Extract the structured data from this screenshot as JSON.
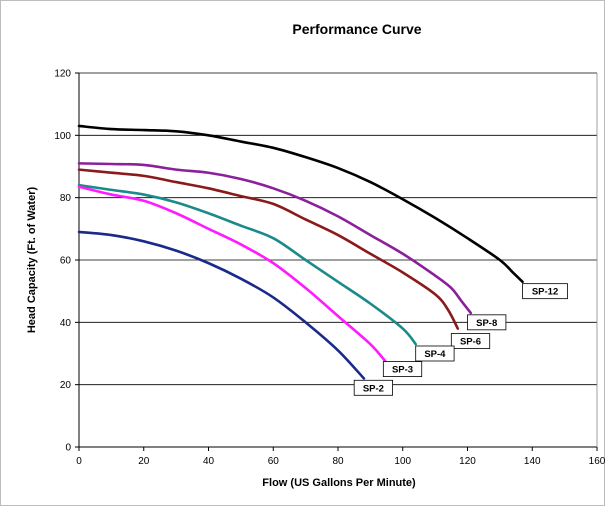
{
  "chart_data": {
    "type": "line",
    "title": "Performance Curve",
    "xlabel": "Flow (US Gallons Per Minute)",
    "ylabel": "Head Capacity (Ft. of Water)",
    "xlim": [
      0,
      160
    ],
    "ylim": [
      0,
      120
    ],
    "xticks": [
      0,
      20,
      40,
      60,
      80,
      100,
      120,
      140,
      160
    ],
    "yticks": [
      0,
      20,
      40,
      60,
      80,
      100,
      120
    ],
    "grid": "horizontal",
    "legend": "inline labels at curve ends",
    "series": [
      {
        "name": "SP-12",
        "color": "#000000",
        "points": [
          [
            0,
            103
          ],
          [
            10,
            102
          ],
          [
            20,
            101.7
          ],
          [
            30,
            101.3
          ],
          [
            40,
            100
          ],
          [
            50,
            98
          ],
          [
            60,
            96
          ],
          [
            70,
            93
          ],
          [
            80,
            89.5
          ],
          [
            90,
            85
          ],
          [
            100,
            79.5
          ],
          [
            110,
            73.5
          ],
          [
            120,
            67
          ],
          [
            130,
            60
          ],
          [
            134,
            56
          ],
          [
            137,
            53
          ]
        ]
      },
      {
        "name": "SP-8",
        "color": "#8b1f9c",
        "points": [
          [
            0,
            91
          ],
          [
            10,
            90.8
          ],
          [
            20,
            90.5
          ],
          [
            30,
            89
          ],
          [
            40,
            88
          ],
          [
            50,
            86
          ],
          [
            60,
            83
          ],
          [
            70,
            79
          ],
          [
            80,
            74
          ],
          [
            90,
            68
          ],
          [
            100,
            62
          ],
          [
            110,
            55
          ],
          [
            115,
            51
          ],
          [
            118,
            47
          ],
          [
            121,
            43
          ]
        ]
      },
      {
        "name": "SP-6",
        "color": "#8b1a1a",
        "points": [
          [
            0,
            89
          ],
          [
            10,
            88
          ],
          [
            20,
            87
          ],
          [
            30,
            85
          ],
          [
            40,
            83
          ],
          [
            50,
            80.5
          ],
          [
            60,
            78
          ],
          [
            70,
            73
          ],
          [
            80,
            68
          ],
          [
            90,
            62
          ],
          [
            100,
            56
          ],
          [
            110,
            49
          ],
          [
            114,
            44
          ],
          [
            117,
            38
          ]
        ]
      },
      {
        "name": "SP-4",
        "color": "#1a8a8a",
        "points": [
          [
            0,
            84
          ],
          [
            10,
            82.5
          ],
          [
            20,
            81
          ],
          [
            30,
            78.5
          ],
          [
            40,
            75
          ],
          [
            50,
            71
          ],
          [
            60,
            67
          ],
          [
            70,
            60
          ],
          [
            80,
            53
          ],
          [
            90,
            46
          ],
          [
            100,
            38
          ],
          [
            104,
            33
          ]
        ]
      },
      {
        "name": "SP-3",
        "color": "#ff1aff",
        "points": [
          [
            0,
            83.5
          ],
          [
            10,
            81
          ],
          [
            20,
            79
          ],
          [
            30,
            75
          ],
          [
            40,
            70
          ],
          [
            50,
            65
          ],
          [
            60,
            59
          ],
          [
            70,
            51
          ],
          [
            80,
            42
          ],
          [
            90,
            33
          ],
          [
            95,
            27
          ]
        ]
      },
      {
        "name": "SP-2",
        "color": "#1a2a8a",
        "points": [
          [
            0,
            69
          ],
          [
            10,
            68
          ],
          [
            20,
            66
          ],
          [
            30,
            63
          ],
          [
            40,
            59
          ],
          [
            50,
            54
          ],
          [
            60,
            48
          ],
          [
            70,
            40
          ],
          [
            80,
            31
          ],
          [
            88,
            22
          ]
        ]
      }
    ],
    "labels": [
      {
        "text": "SP-12",
        "at": [
          137,
          50
        ]
      },
      {
        "text": "SP-8",
        "at": [
          120,
          40
        ]
      },
      {
        "text": "SP-6",
        "at": [
          115,
          34
        ]
      },
      {
        "text": "SP-4",
        "at": [
          104,
          30
        ]
      },
      {
        "text": "SP-3",
        "at": [
          94,
          25
        ]
      },
      {
        "text": "SP-2",
        "at": [
          85,
          19
        ]
      }
    ]
  }
}
